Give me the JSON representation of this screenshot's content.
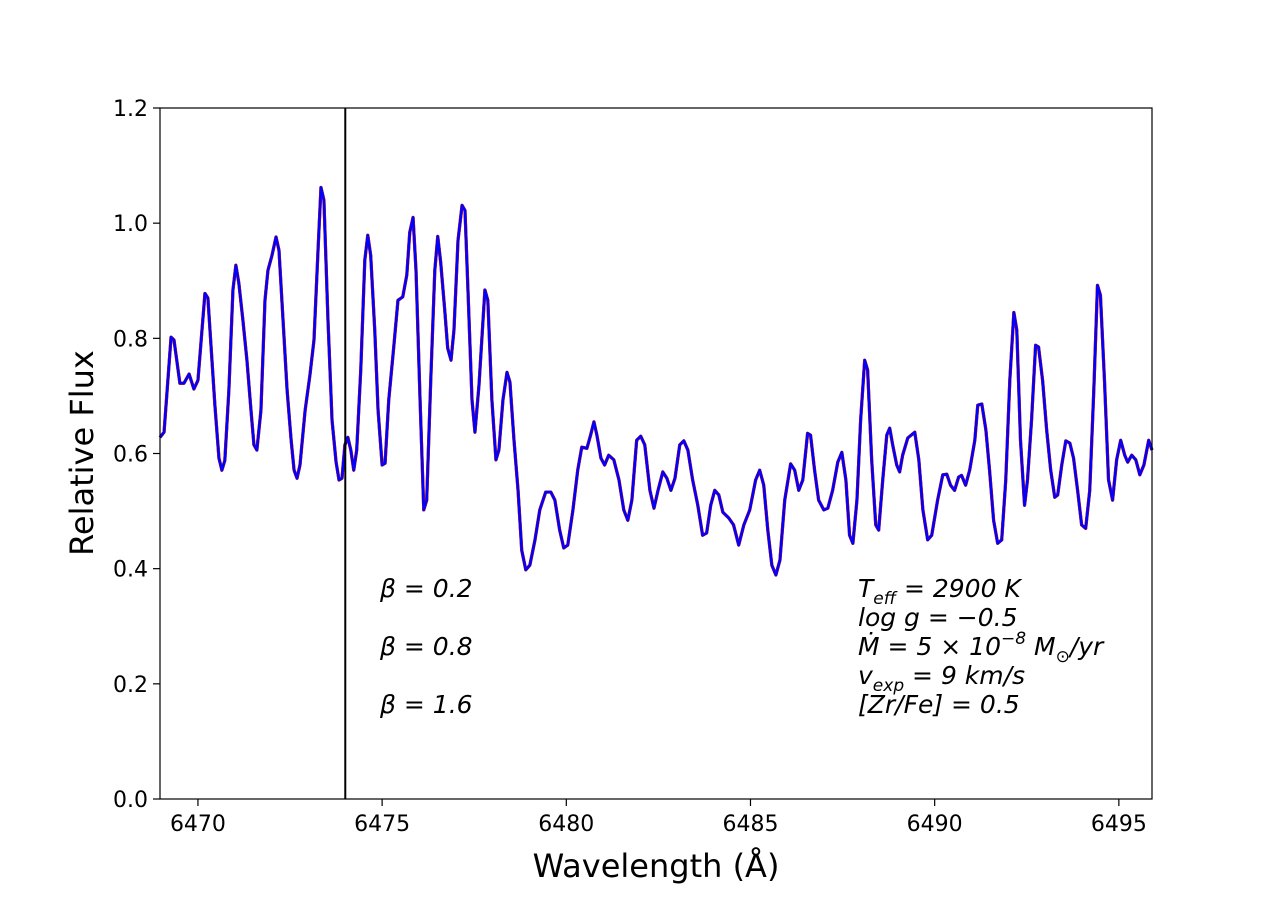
{
  "chart_data": {
    "type": "line",
    "xlabel": "Wavelength (Å)",
    "ylabel": "Relative Flux",
    "xlim": [
      6468.97,
      6495.9
    ],
    "ylim": [
      0,
      1.2
    ],
    "xticks": [
      6470,
      6475,
      6480,
      6485,
      6490,
      6495
    ],
    "yticks": [
      {
        "value": 0,
        "label": "0.0"
      },
      0.2,
      0.4,
      0.6,
      0.8,
      {
        "value": 1,
        "label": "1.0"
      },
      1.2
    ],
    "vline": 6474.0,
    "params": [
      [
        "T",
        {
          "sub": "eff"
        },
        " = 2900 K"
      ],
      [
        "log g = −0.5"
      ],
      [
        "Ṁ = 5 × 10",
        {
          "sup": "−8"
        },
        " M",
        {
          "sub": "⊙"
        },
        "/yr"
      ],
      [
        "v",
        {
          "sub": "exp"
        },
        " = 9 km/s"
      ],
      [
        "[Zr/Fe] = 0.5"
      ]
    ],
    "x": [
      6468.97,
      6469.08,
      6469.27,
      6469.35,
      6469.51,
      6469.62,
      6469.76,
      6469.89,
      6470.0,
      6470.19,
      6470.27,
      6470.46,
      6470.57,
      6470.65,
      6470.73,
      6470.84,
      6470.95,
      6471.03,
      6471.11,
      6471.22,
      6471.33,
      6471.44,
      6471.52,
      6471.6,
      6471.71,
      6471.82,
      6471.9,
      6472.01,
      6472.12,
      6472.2,
      6472.31,
      6472.42,
      6472.53,
      6472.61,
      6472.69,
      6472.77,
      6472.91,
      6473.04,
      6473.15,
      6473.26,
      6473.34,
      6473.42,
      6473.53,
      6473.64,
      6473.75,
      6473.83,
      6473.91,
      6473.99,
      6474.07,
      6474.15,
      6474.23,
      6474.31,
      6474.42,
      6474.53,
      6474.61,
      6474.69,
      6474.8,
      6474.89,
      6475.0,
      6475.08,
      6475.18,
      6475.32,
      6475.43,
      6475.56,
      6475.67,
      6475.75,
      6475.84,
      6475.92,
      6476.03,
      6476.13,
      6476.21,
      6476.32,
      6476.43,
      6476.51,
      6476.59,
      6476.7,
      6476.78,
      6476.87,
      6476.95,
      6477.06,
      6477.17,
      6477.25,
      6477.33,
      6477.44,
      6477.52,
      6477.63,
      6477.79,
      6477.87,
      6477.98,
      6478.09,
      6478.17,
      6478.28,
      6478.39,
      6478.47,
      6478.58,
      6478.69,
      6478.79,
      6478.9,
      6479.01,
      6479.15,
      6479.28,
      6479.44,
      6479.58,
      6479.69,
      6479.82,
      6479.93,
      6480.04,
      6480.18,
      6480.31,
      6480.42,
      6480.56,
      6480.66,
      6480.75,
      6480.83,
      6480.94,
      6481.04,
      6481.15,
      6481.29,
      6481.43,
      6481.56,
      6481.67,
      6481.78,
      6481.91,
      6482.02,
      6482.13,
      6482.27,
      6482.38,
      6482.49,
      6482.62,
      6482.73,
      6482.84,
      6482.95,
      6483.08,
      6483.19,
      6483.3,
      6483.43,
      6483.57,
      6483.7,
      6483.81,
      6483.92,
      6484.03,
      6484.14,
      6484.25,
      6484.41,
      6484.54,
      6484.68,
      6484.82,
      6484.98,
      6485.14,
      6485.25,
      6485.36,
      6485.47,
      6485.58,
      6485.69,
      6485.8,
      6485.93,
      6486.09,
      6486.2,
      6486.31,
      6486.42,
      6486.55,
      6486.63,
      6486.74,
      6486.85,
      6486.99,
      6487.1,
      6487.23,
      6487.37,
      6487.48,
      6487.59,
      6487.69,
      6487.78,
      6487.89,
      6487.99,
      6488.1,
      6488.18,
      6488.29,
      6488.4,
      6488.48,
      6488.59,
      6488.7,
      6488.78,
      6488.86,
      6488.97,
      6489.05,
      6489.13,
      6489.27,
      6489.46,
      6489.57,
      6489.68,
      6489.81,
      6489.92,
      6490.08,
      6490.22,
      6490.33,
      6490.43,
      6490.54,
      6490.65,
      6490.73,
      6490.84,
      6490.95,
      6491.09,
      6491.17,
      6491.28,
      6491.39,
      6491.49,
      6491.6,
      6491.71,
      6491.82,
      6491.93,
      6492.04,
      6492.15,
      6492.23,
      6492.33,
      6492.44,
      6492.52,
      6492.63,
      6492.74,
      6492.82,
      6492.93,
      6493.04,
      6493.15,
      6493.26,
      6493.34,
      6493.45,
      6493.56,
      6493.67,
      6493.77,
      6493.88,
      6493.99,
      6494.1,
      6494.21,
      6494.32,
      6494.42,
      6494.5,
      6494.61,
      6494.72,
      6494.83,
      6494.94,
      6495.05,
      6495.16,
      6495.24,
      6495.35,
      6495.46,
      6495.57,
      6495.68,
      6495.81,
      6495.9
    ],
    "series": [
      {
        "name": "β = 0.2",
        "color": "#008000",
        "values": [
          0.628,
          0.637,
          0.802,
          0.797,
          0.722,
          0.722,
          0.738,
          0.712,
          0.727,
          0.878,
          0.87,
          0.684,
          0.592,
          0.571,
          0.588,
          0.71,
          0.884,
          0.927,
          0.896,
          0.832,
          0.762,
          0.675,
          0.615,
          0.606,
          0.675,
          0.866,
          0.918,
          0.944,
          0.976,
          0.953,
          0.832,
          0.71,
          0.623,
          0.571,
          0.557,
          0.58,
          0.675,
          0.736,
          0.797,
          0.953,
          1.062,
          1.04,
          0.832,
          0.658,
          0.585,
          0.554,
          0.557,
          0.615,
          0.628,
          0.606,
          0.571,
          0.606,
          0.745,
          0.936,
          0.979,
          0.944,
          0.814,
          0.675,
          0.58,
          0.583,
          0.693,
          0.788,
          0.866,
          0.872,
          0.91,
          0.984,
          1.01,
          0.918,
          0.693,
          0.502,
          0.519,
          0.727,
          0.918,
          0.977,
          0.932,
          0.849,
          0.783,
          0.762,
          0.814,
          0.97,
          1.031,
          1.022,
          0.884,
          0.693,
          0.637,
          0.719,
          0.884,
          0.866,
          0.693,
          0.589,
          0.606,
          0.693,
          0.741,
          0.724,
          0.623,
          0.536,
          0.432,
          0.398,
          0.406,
          0.45,
          0.502,
          0.533,
          0.533,
          0.519,
          0.467,
          0.436,
          0.441,
          0.502,
          0.571,
          0.611,
          0.609,
          0.632,
          0.655,
          0.632,
          0.592,
          0.58,
          0.597,
          0.589,
          0.554,
          0.502,
          0.484,
          0.519,
          0.623,
          0.63,
          0.615,
          0.536,
          0.505,
          0.536,
          0.568,
          0.557,
          0.536,
          0.557,
          0.615,
          0.622,
          0.606,
          0.554,
          0.51,
          0.458,
          0.462,
          0.51,
          0.536,
          0.528,
          0.498,
          0.488,
          0.476,
          0.441,
          0.476,
          0.502,
          0.554,
          0.571,
          0.545,
          0.467,
          0.406,
          0.389,
          0.415,
          0.519,
          0.582,
          0.571,
          0.536,
          0.554,
          0.635,
          0.632,
          0.571,
          0.519,
          0.502,
          0.505,
          0.536,
          0.585,
          0.602,
          0.554,
          0.458,
          0.444,
          0.519,
          0.658,
          0.762,
          0.745,
          0.589,
          0.476,
          0.467,
          0.554,
          0.632,
          0.644,
          0.615,
          0.58,
          0.568,
          0.597,
          0.627,
          0.637,
          0.589,
          0.502,
          0.45,
          0.458,
          0.519,
          0.563,
          0.564,
          0.545,
          0.536,
          0.559,
          0.562,
          0.545,
          0.571,
          0.623,
          0.684,
          0.686,
          0.641,
          0.571,
          0.484,
          0.444,
          0.45,
          0.554,
          0.727,
          0.845,
          0.814,
          0.623,
          0.51,
          0.554,
          0.658,
          0.788,
          0.785,
          0.727,
          0.641,
          0.571,
          0.524,
          0.528,
          0.58,
          0.622,
          0.618,
          0.592,
          0.536,
          0.476,
          0.47,
          0.536,
          0.71,
          0.892,
          0.875,
          0.727,
          0.554,
          0.519,
          0.589,
          0.623,
          0.597,
          0.585,
          0.597,
          0.589,
          0.563,
          0.58,
          0.623,
          0.606
        ]
      },
      {
        "name": "β = 0.8",
        "color": "#ff0000",
        "values": [
          0.628,
          0.637,
          0.802,
          0.797,
          0.722,
          0.722,
          0.738,
          0.712,
          0.727,
          0.878,
          0.87,
          0.684,
          0.592,
          0.571,
          0.588,
          0.71,
          0.884,
          0.927,
          0.896,
          0.832,
          0.762,
          0.675,
          0.615,
          0.606,
          0.675,
          0.866,
          0.918,
          0.944,
          0.976,
          0.953,
          0.832,
          0.71,
          0.623,
          0.571,
          0.557,
          0.58,
          0.675,
          0.736,
          0.797,
          0.953,
          1.062,
          1.04,
          0.832,
          0.658,
          0.585,
          0.554,
          0.557,
          0.615,
          0.628,
          0.606,
          0.571,
          0.606,
          0.745,
          0.936,
          0.979,
          0.944,
          0.814,
          0.675,
          0.58,
          0.583,
          0.693,
          0.788,
          0.866,
          0.872,
          0.91,
          0.984,
          1.01,
          0.918,
          0.693,
          0.502,
          0.519,
          0.727,
          0.918,
          0.977,
          0.932,
          0.849,
          0.783,
          0.762,
          0.814,
          0.97,
          1.031,
          1.022,
          0.884,
          0.693,
          0.637,
          0.719,
          0.884,
          0.866,
          0.693,
          0.589,
          0.606,
          0.693,
          0.741,
          0.724,
          0.623,
          0.536,
          0.432,
          0.398,
          0.406,
          0.45,
          0.502,
          0.533,
          0.533,
          0.519,
          0.467,
          0.436,
          0.441,
          0.502,
          0.571,
          0.611,
          0.609,
          0.632,
          0.655,
          0.632,
          0.592,
          0.58,
          0.597,
          0.589,
          0.554,
          0.502,
          0.484,
          0.519,
          0.623,
          0.63,
          0.615,
          0.536,
          0.505,
          0.536,
          0.568,
          0.557,
          0.536,
          0.557,
          0.615,
          0.622,
          0.606,
          0.554,
          0.51,
          0.458,
          0.462,
          0.51,
          0.536,
          0.528,
          0.498,
          0.488,
          0.476,
          0.441,
          0.476,
          0.502,
          0.554,
          0.571,
          0.545,
          0.467,
          0.406,
          0.389,
          0.415,
          0.519,
          0.582,
          0.571,
          0.536,
          0.554,
          0.635,
          0.632,
          0.571,
          0.519,
          0.502,
          0.505,
          0.536,
          0.585,
          0.602,
          0.554,
          0.458,
          0.444,
          0.519,
          0.658,
          0.762,
          0.745,
          0.589,
          0.476,
          0.467,
          0.554,
          0.632,
          0.644,
          0.615,
          0.58,
          0.568,
          0.597,
          0.627,
          0.637,
          0.589,
          0.502,
          0.45,
          0.458,
          0.519,
          0.563,
          0.564,
          0.545,
          0.536,
          0.559,
          0.562,
          0.545,
          0.571,
          0.623,
          0.684,
          0.686,
          0.641,
          0.571,
          0.484,
          0.444,
          0.45,
          0.554,
          0.727,
          0.845,
          0.814,
          0.623,
          0.51,
          0.554,
          0.658,
          0.788,
          0.785,
          0.727,
          0.641,
          0.571,
          0.524,
          0.528,
          0.58,
          0.622,
          0.618,
          0.592,
          0.536,
          0.476,
          0.47,
          0.536,
          0.71,
          0.892,
          0.875,
          0.727,
          0.554,
          0.519,
          0.589,
          0.623,
          0.597,
          0.585,
          0.597,
          0.589,
          0.563,
          0.58,
          0.623,
          0.606
        ]
      },
      {
        "name": "β = 1.6",
        "color": "#0000ff",
        "values": [
          0.628,
          0.637,
          0.802,
          0.797,
          0.722,
          0.722,
          0.738,
          0.712,
          0.727,
          0.878,
          0.87,
          0.684,
          0.592,
          0.571,
          0.588,
          0.71,
          0.884,
          0.927,
          0.896,
          0.832,
          0.762,
          0.675,
          0.615,
          0.606,
          0.675,
          0.866,
          0.918,
          0.944,
          0.976,
          0.953,
          0.832,
          0.71,
          0.623,
          0.571,
          0.557,
          0.58,
          0.675,
          0.736,
          0.797,
          0.953,
          1.062,
          1.04,
          0.832,
          0.658,
          0.585,
          0.554,
          0.557,
          0.615,
          0.628,
          0.606,
          0.571,
          0.606,
          0.745,
          0.936,
          0.979,
          0.944,
          0.814,
          0.675,
          0.58,
          0.583,
          0.693,
          0.788,
          0.866,
          0.872,
          0.91,
          0.984,
          1.01,
          0.918,
          0.693,
          0.502,
          0.519,
          0.727,
          0.918,
          0.977,
          0.932,
          0.849,
          0.783,
          0.762,
          0.814,
          0.97,
          1.031,
          1.022,
          0.884,
          0.693,
          0.637,
          0.719,
          0.884,
          0.866,
          0.693,
          0.589,
          0.606,
          0.693,
          0.741,
          0.724,
          0.623,
          0.536,
          0.432,
          0.398,
          0.406,
          0.45,
          0.502,
          0.533,
          0.533,
          0.519,
          0.467,
          0.436,
          0.441,
          0.502,
          0.571,
          0.611,
          0.609,
          0.632,
          0.655,
          0.632,
          0.592,
          0.58,
          0.597,
          0.589,
          0.554,
          0.502,
          0.484,
          0.519,
          0.623,
          0.63,
          0.615,
          0.536,
          0.505,
          0.536,
          0.568,
          0.557,
          0.536,
          0.557,
          0.615,
          0.622,
          0.606,
          0.554,
          0.51,
          0.458,
          0.462,
          0.51,
          0.536,
          0.528,
          0.498,
          0.488,
          0.476,
          0.441,
          0.476,
          0.502,
          0.554,
          0.571,
          0.545,
          0.467,
          0.406,
          0.389,
          0.415,
          0.519,
          0.582,
          0.571,
          0.536,
          0.554,
          0.635,
          0.632,
          0.571,
          0.519,
          0.502,
          0.505,
          0.536,
          0.585,
          0.602,
          0.554,
          0.458,
          0.444,
          0.519,
          0.658,
          0.762,
          0.745,
          0.589,
          0.476,
          0.467,
          0.554,
          0.632,
          0.644,
          0.615,
          0.58,
          0.568,
          0.597,
          0.627,
          0.637,
          0.589,
          0.502,
          0.45,
          0.458,
          0.519,
          0.563,
          0.564,
          0.545,
          0.536,
          0.559,
          0.562,
          0.545,
          0.571,
          0.623,
          0.684,
          0.686,
          0.641,
          0.571,
          0.484,
          0.444,
          0.45,
          0.554,
          0.727,
          0.845,
          0.814,
          0.623,
          0.51,
          0.554,
          0.658,
          0.788,
          0.785,
          0.727,
          0.641,
          0.571,
          0.524,
          0.528,
          0.58,
          0.622,
          0.618,
          0.592,
          0.536,
          0.476,
          0.47,
          0.536,
          0.71,
          0.892,
          0.875,
          0.727,
          0.554,
          0.519,
          0.589,
          0.623,
          0.597,
          0.585,
          0.597,
          0.589,
          0.563,
          0.58,
          0.623,
          0.606
        ]
      }
    ]
  }
}
